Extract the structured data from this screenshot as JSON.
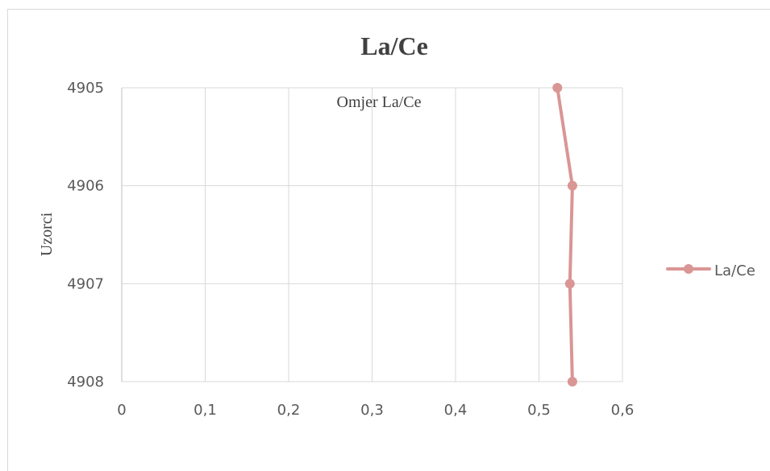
{
  "chart_data": {
    "type": "line",
    "title": "La/Ce",
    "xlabel": "Omjer La/Ce",
    "ylabel": "Uzorci",
    "xlim": [
      0,
      0.6
    ],
    "x_ticks": [
      "0",
      "0,1",
      "0,2",
      "0,3",
      "0,4",
      "0,5",
      "0,6"
    ],
    "y_categories": [
      "4905",
      "4906",
      "4907",
      "4908"
    ],
    "series": [
      {
        "name": "La/Ce",
        "color": "#d99694",
        "points": [
          {
            "y": "4905",
            "x": 0.522
          },
          {
            "y": "4906",
            "x": 0.54
          },
          {
            "y": "4907",
            "x": 0.537
          },
          {
            "y": "4908",
            "x": 0.54
          }
        ]
      }
    ],
    "grid": true,
    "legend_position": "right"
  }
}
